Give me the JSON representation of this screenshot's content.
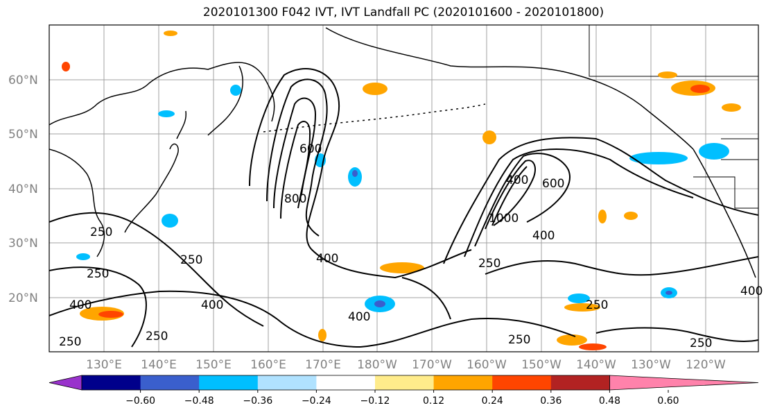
{
  "title": "2020101300 F042 IVT, IVT Landfall PC (2020101600 - 2020101800)",
  "lat_labels": [
    "60°N",
    "50°N",
    "40°N",
    "30°N",
    "20°N"
  ],
  "lon_labels": [
    "130°E",
    "140°E",
    "150°E",
    "160°E",
    "170°E",
    "180°W",
    "170°W",
    "160°W",
    "150°W",
    "140°W",
    "130°W",
    "120°W"
  ],
  "ivt_contour_labels": [
    "800",
    "600",
    "400",
    "250",
    "250",
    "250",
    "250",
    "400",
    "400",
    "400",
    "250",
    "400",
    "600",
    "1000",
    "400",
    "250",
    "250",
    "250",
    "250",
    "400"
  ],
  "colorbar": {
    "colors": [
      "#9932cc",
      "#00008b",
      "#3a5fcd",
      "#00bfff",
      "#b0e2ff",
      "#ffffff",
      "#ffec8b",
      "#ffa500",
      "#ff4500",
      "#b22222",
      "#ff82ab"
    ],
    "tick_labels": [
      "−0.60",
      "−0.48",
      "−0.36",
      "−0.24",
      "−0.12",
      "0.12",
      "0.24",
      "0.36",
      "0.48",
      "0.60"
    ]
  },
  "colors": {
    "land_outline": "#000000",
    "grid": "#a0a0a0",
    "axis_label": "#808080"
  }
}
